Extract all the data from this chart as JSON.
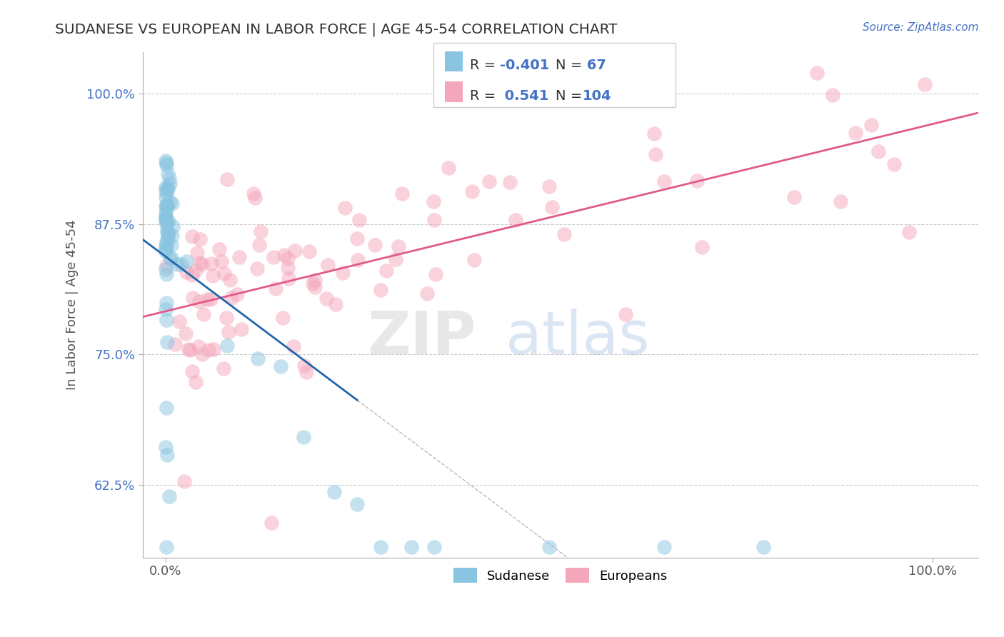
{
  "title": "SUDANESE VS EUROPEAN IN LABOR FORCE | AGE 45-54 CORRELATION CHART",
  "source_text": "Source: ZipAtlas.com",
  "ylabel": "In Labor Force | Age 45-54",
  "y_ticks": [
    0.625,
    0.75,
    0.875,
    1.0
  ],
  "y_tick_labels": [
    "62.5%",
    "75.0%",
    "87.5%",
    "100.0%"
  ],
  "xlim": [
    -0.03,
    1.06
  ],
  "ylim": [
    0.555,
    1.04
  ],
  "R_sudanese": -0.401,
  "N_sudanese": 67,
  "R_european": 0.541,
  "N_european": 104,
  "sudanese_color": "#89c4e1",
  "european_color": "#f4a7bb",
  "sudanese_line_color": "#2166ac",
  "european_line_color": "#e05a8a",
  "background_color": "#ffffff",
  "grid_color": "#cccccc",
  "title_color": "#333333",
  "source_color": "#4472c4",
  "legend_line1": "R =  -0.401   N=   67",
  "legend_line2": "R =   0.541   N= 104"
}
